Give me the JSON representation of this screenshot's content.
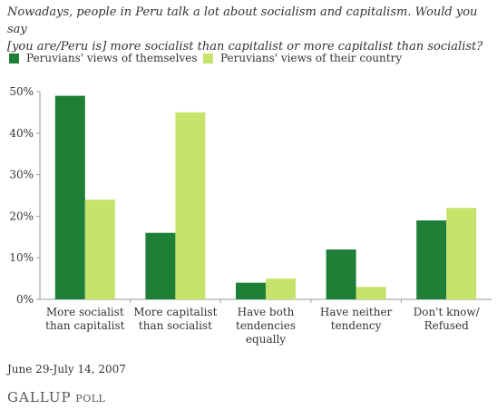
{
  "title_lines": [
    "Nowadays, people in Peru talk a lot about socialism and capitalism. Would you say",
    "[you are/Peru is] more socialist than capitalist or more capitalist than socialist?"
  ],
  "footnote": "June 29-July 14, 2007",
  "logo": {
    "main": "GALLUP",
    "sub": "POLL"
  },
  "colors": {
    "series1": "#1e7f36",
    "series2": "#c6e36b",
    "axis": "#999999"
  },
  "chart_data": {
    "type": "bar",
    "title": "Nowadays, people in Peru talk a lot about socialism and capitalism. Would you say [you are/Peru is] more socialist than capitalist or more capitalist than socialist?",
    "categories": [
      [
        "More socialist",
        "than capitalist"
      ],
      [
        "More capitalist",
        "than socialist"
      ],
      [
        "Have both",
        "tendencies",
        "equally"
      ],
      [
        "Have neither",
        "tendency"
      ],
      [
        "Don't know/",
        "Refused"
      ]
    ],
    "series": [
      {
        "name": "Peruvians' views of themselves",
        "values": [
          49,
          16,
          4,
          12,
          19
        ]
      },
      {
        "name": "Peruvians' views of their country",
        "values": [
          24,
          45,
          5,
          3,
          22
        ]
      }
    ],
    "y_ticks": [
      "0%",
      "10%",
      "20%",
      "30%",
      "40%",
      "50%"
    ],
    "ylim": [
      0,
      50
    ],
    "grid": false,
    "legend_placement": "top-left"
  }
}
